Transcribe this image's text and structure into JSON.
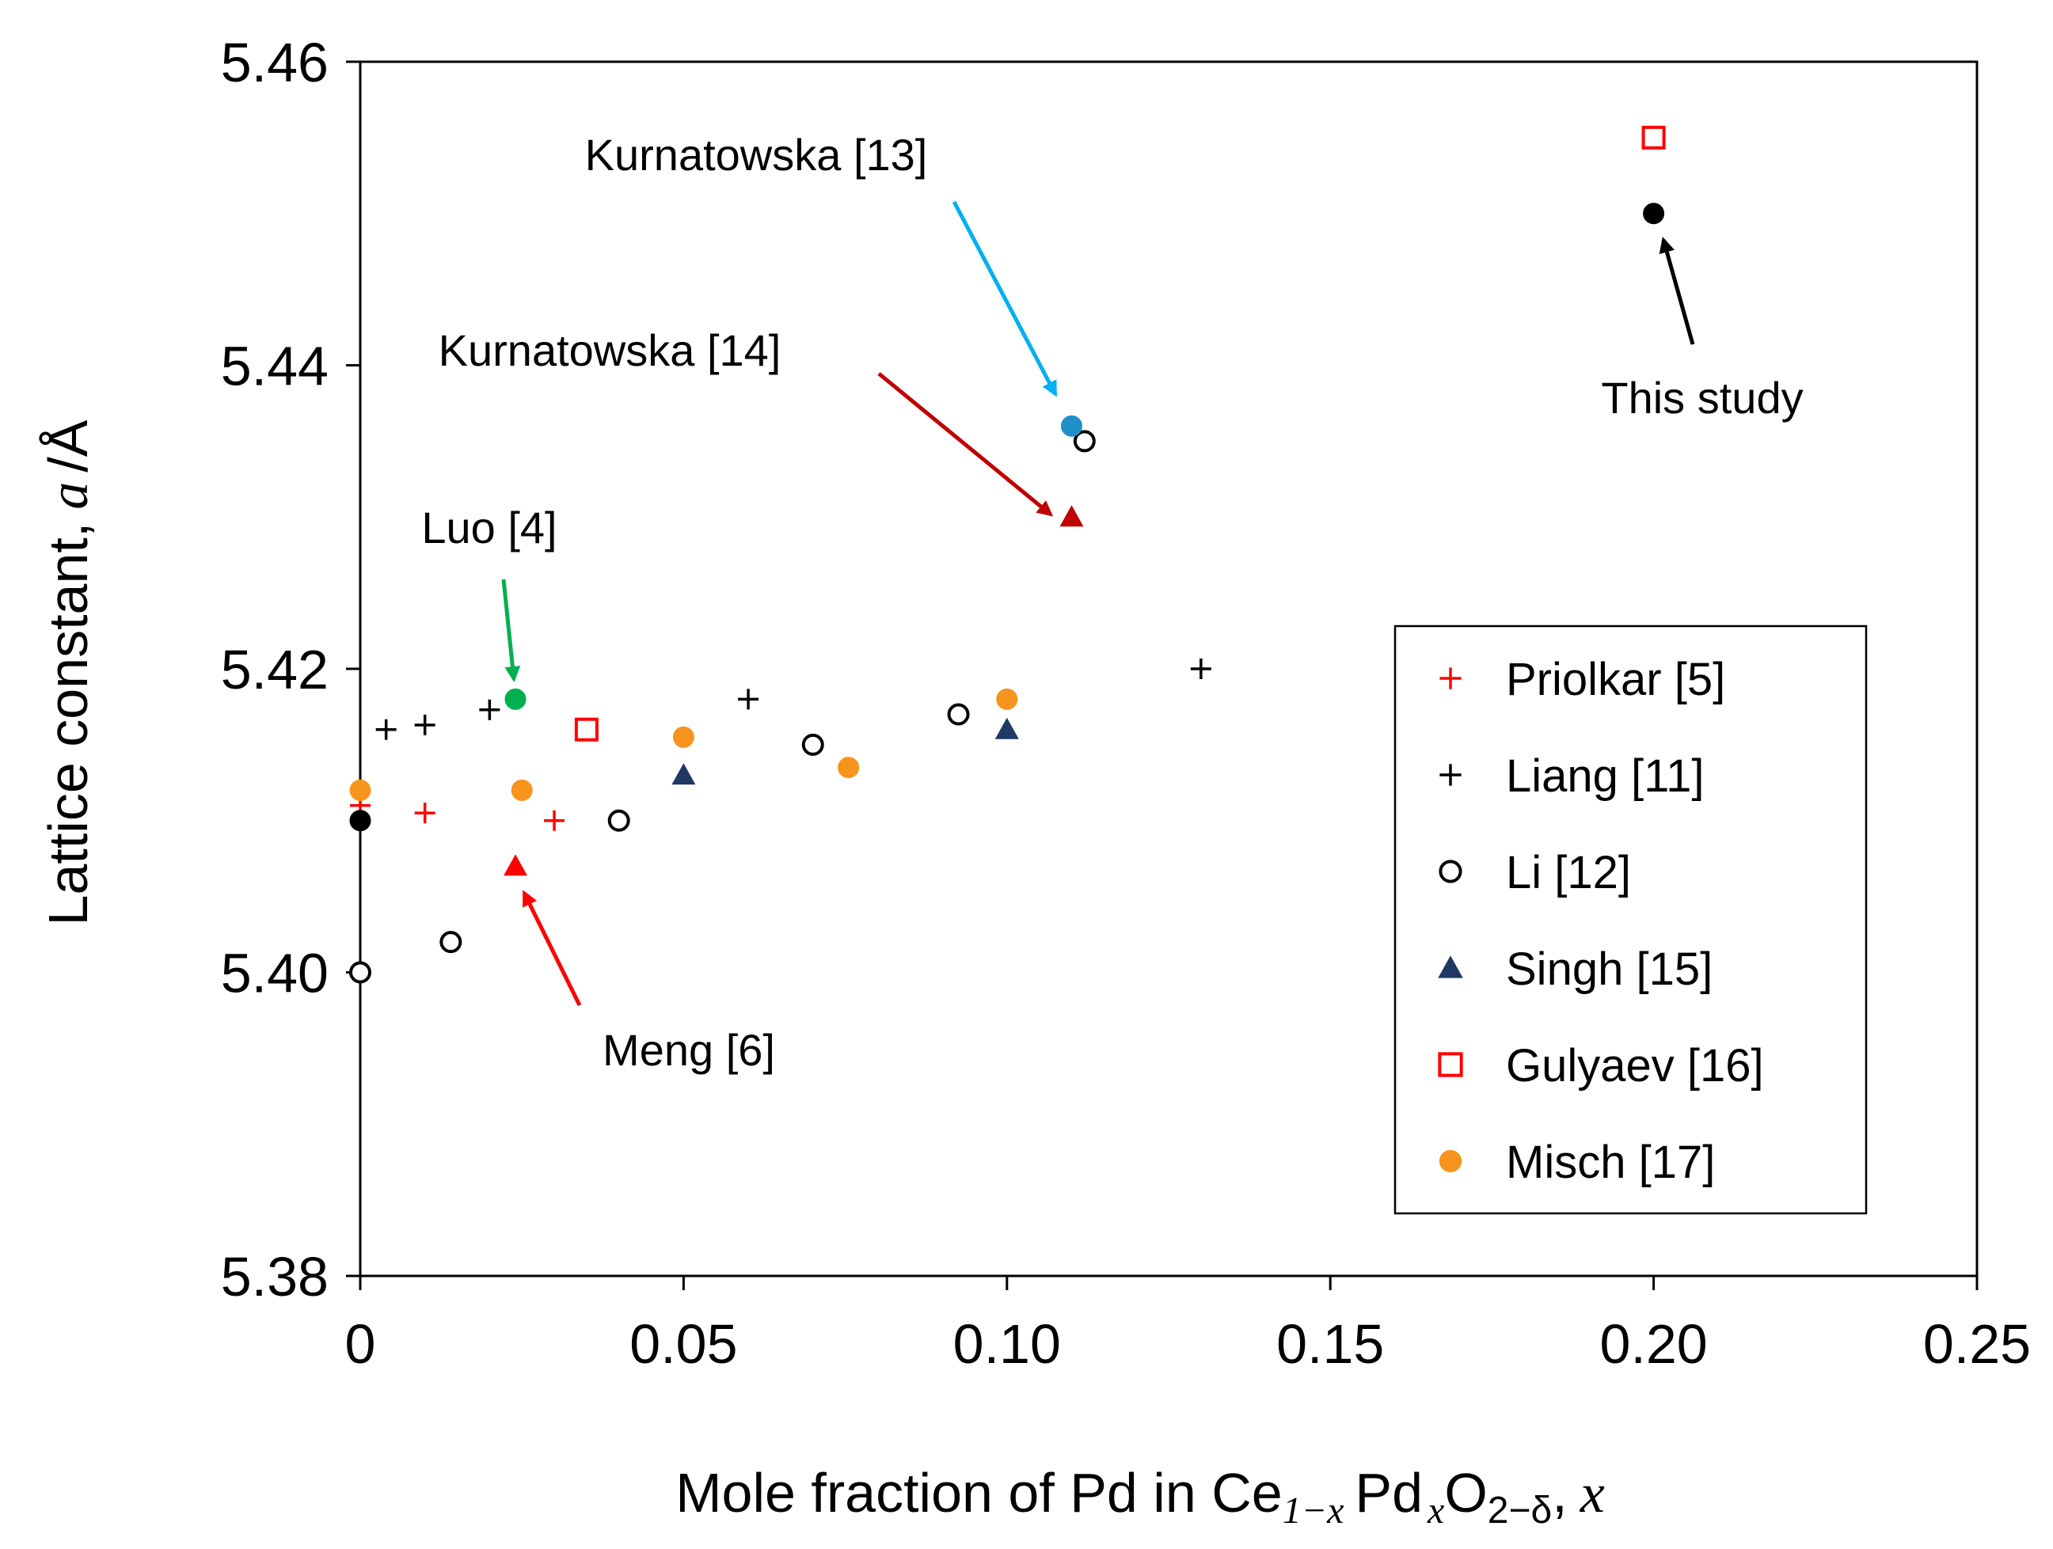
{
  "chart_data": {
    "type": "scatter",
    "title": "",
    "xlabel": {
      "prefix": "Mole fraction of Pd in Ce",
      "ce_sub": "1−x",
      "pd": "Pd",
      "pd_sub": "x",
      "o": "O",
      "o_sub": "2−δ",
      "sep": ",",
      "var": "x"
    },
    "ylabel": {
      "prefix": "Lattice constant,",
      "var": "a",
      "unit": "/Å"
    },
    "xlim": [
      0,
      0.25
    ],
    "ylim": [
      5.38,
      5.46
    ],
    "x_ticks": [
      0,
      0.05,
      0.1,
      0.15,
      0.2,
      0.25
    ],
    "x_tick_labels": [
      "0",
      "0.05",
      "0.10",
      "0.15",
      "0.20",
      "0.25"
    ],
    "y_ticks": [
      5.38,
      5.4,
      5.42,
      5.44,
      5.46
    ],
    "y_tick_labels": [
      "5.38",
      "5.40",
      "5.42",
      "5.44",
      "5.46"
    ],
    "grid": false,
    "legend_position": "right",
    "series": [
      {
        "name": "Priolkar [5]",
        "marker": "plus",
        "color": "#ff0000",
        "in_legend": true,
        "points": [
          [
            0,
            5.411
          ],
          [
            0.01,
            5.4105
          ],
          [
            0.03,
            5.41
          ]
        ]
      },
      {
        "name": "Liang [11]",
        "marker": "plus",
        "color": "#000000",
        "in_legend": true,
        "points": [
          [
            0.004,
            5.416
          ],
          [
            0.01,
            5.4163
          ],
          [
            0.02,
            5.4173
          ],
          [
            0.06,
            5.418
          ],
          [
            0.13,
            5.42
          ]
        ]
      },
      {
        "name": "Li [12]",
        "marker": "open-circle",
        "color": "#000000",
        "in_legend": true,
        "points": [
          [
            0,
            5.4
          ],
          [
            0.014,
            5.402
          ],
          [
            0.04,
            5.41
          ],
          [
            0.07,
            5.415
          ],
          [
            0.0925,
            5.417
          ],
          [
            0.112,
            5.435
          ]
        ]
      },
      {
        "name": "Singh [15]",
        "marker": "triangle",
        "color": "#1f3864",
        "in_legend": true,
        "points": [
          [
            0.05,
            5.413
          ],
          [
            0.1,
            5.416
          ]
        ]
      },
      {
        "name": "Gulyaev [16]",
        "marker": "open-square",
        "color": "#ff0000",
        "in_legend": true,
        "points": [
          [
            0.035,
            5.416
          ],
          [
            0.2,
            5.455
          ]
        ]
      },
      {
        "name": "Misch [17]",
        "marker": "filled-circle",
        "color": "#f7941d",
        "in_legend": true,
        "points": [
          [
            0,
            5.412
          ],
          [
            0.025,
            5.412
          ],
          [
            0.05,
            5.4155
          ],
          [
            0.0755,
            5.4135
          ],
          [
            0.1,
            5.418
          ]
        ]
      },
      {
        "name": "This study",
        "marker": "filled-circle",
        "color": "#000000",
        "in_legend": false,
        "points": [
          [
            0,
            5.41
          ],
          [
            0.2,
            5.45
          ]
        ]
      },
      {
        "name": "Luo [4]",
        "marker": "filled-circle",
        "color": "#00b050",
        "in_legend": false,
        "points": [
          [
            0.024,
            5.418
          ]
        ]
      },
      {
        "name": "Meng [6]",
        "marker": "triangle",
        "color": "#ff0000",
        "in_legend": false,
        "points": [
          [
            0.024,
            5.407
          ]
        ]
      },
      {
        "name": "Kurnatowska [13]",
        "marker": "filled-circle",
        "color": "#1f8fc8",
        "in_legend": false,
        "points": [
          [
            0.11,
            5.436
          ]
        ]
      },
      {
        "name": "Kurnatowska [14]",
        "marker": "triangle",
        "color": "#c00000",
        "in_legend": false,
        "points": [
          [
            0.11,
            5.43
          ]
        ]
      }
    ],
    "annotations": [
      {
        "text": "Kurnatowska [13]",
        "color": "#00b0f0",
        "target": [
          0.11,
          5.436
        ]
      },
      {
        "text": "Kurnatowska [14]",
        "color": "#c00000",
        "target": [
          0.11,
          5.43
        ]
      },
      {
        "text": "This study",
        "color": "#000000",
        "target": [
          0.2,
          5.45
        ]
      },
      {
        "text": "Luo [4]",
        "color": "#00b050",
        "target": [
          0.024,
          5.418
        ]
      },
      {
        "text": "Meng [6]",
        "color": "#ff0000",
        "target": [
          0.024,
          5.407
        ]
      }
    ]
  }
}
